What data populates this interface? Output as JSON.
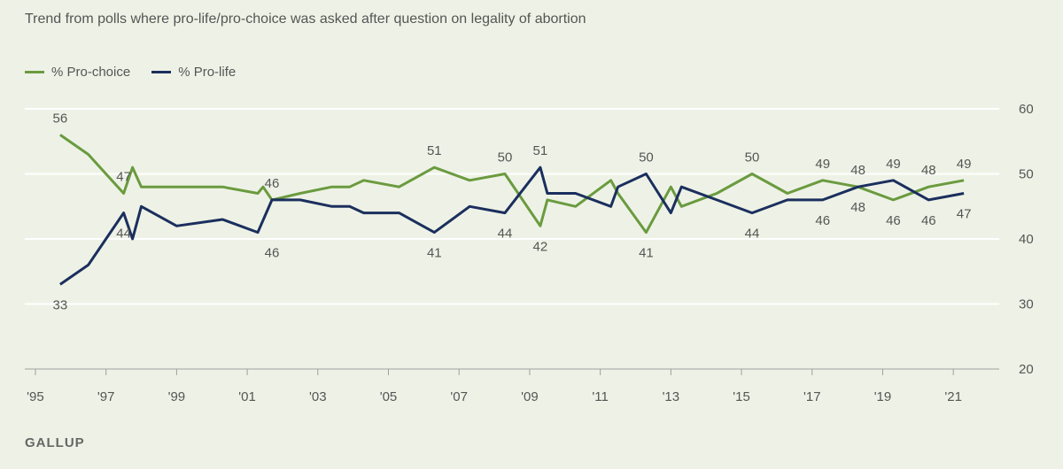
{
  "subtitle": "Trend from polls where pro-life/pro-choice was asked after question on legality of abortion",
  "source": "GALLUP",
  "chart_data": {
    "type": "line",
    "xlabel": "",
    "ylabel": "",
    "xlim": [
      1994.7,
      2022.3
    ],
    "ylim": [
      20,
      60
    ],
    "y_ticks": [
      20,
      30,
      40,
      50,
      60
    ],
    "x_ticks": [
      {
        "value": 1995,
        "label": "'95"
      },
      {
        "value": 1997,
        "label": "'97"
      },
      {
        "value": 1999,
        "label": "'99"
      },
      {
        "value": 2001,
        "label": "'01"
      },
      {
        "value": 2003,
        "label": "'03"
      },
      {
        "value": 2005,
        "label": "'05"
      },
      {
        "value": 2007,
        "label": "'07"
      },
      {
        "value": 2009,
        "label": "'09"
      },
      {
        "value": 2011,
        "label": "'11"
      },
      {
        "value": 2013,
        "label": "'13"
      },
      {
        "value": 2015,
        "label": "'15"
      },
      {
        "value": 2017,
        "label": "'17"
      },
      {
        "value": 2019,
        "label": "'19"
      },
      {
        "value": 2021,
        "label": "'21"
      }
    ],
    "grid": true,
    "legend_position": "top-left",
    "series": [
      {
        "name": "% Pro-choice",
        "color": "#6a9b3f",
        "points": [
          [
            1995.7,
            56
          ],
          [
            1996.5,
            53
          ],
          [
            1997.5,
            47
          ],
          [
            1997.75,
            51
          ],
          [
            1998.0,
            48
          ],
          [
            1999.0,
            48
          ],
          [
            2000.3,
            48
          ],
          [
            2001.3,
            47
          ],
          [
            2001.45,
            48
          ],
          [
            2001.7,
            46
          ],
          [
            2002.5,
            47
          ],
          [
            2003.4,
            48
          ],
          [
            2003.9,
            48
          ],
          [
            2004.3,
            49
          ],
          [
            2005.3,
            48
          ],
          [
            2006.3,
            51
          ],
          [
            2007.3,
            49
          ],
          [
            2008.3,
            50
          ],
          [
            2009.3,
            42
          ],
          [
            2009.5,
            46
          ],
          [
            2010.3,
            45
          ],
          [
            2011.3,
            49
          ],
          [
            2011.5,
            47
          ],
          [
            2012.3,
            41
          ],
          [
            2013.0,
            48
          ],
          [
            2013.3,
            45
          ],
          [
            2014.3,
            47
          ],
          [
            2015.3,
            50
          ],
          [
            2016.3,
            47
          ],
          [
            2017.3,
            49
          ],
          [
            2018.3,
            48
          ],
          [
            2019.3,
            46
          ],
          [
            2020.3,
            48
          ],
          [
            2021.3,
            49
          ]
        ],
        "labels": [
          {
            "x": 1995.7,
            "value": "56",
            "pos": "above"
          },
          {
            "x": 1997.5,
            "value": "47",
            "pos": "above"
          },
          {
            "x": 2001.7,
            "value": "46",
            "pos": "above"
          },
          {
            "x": 2006.3,
            "value": "51",
            "pos": "above"
          },
          {
            "x": 2008.3,
            "value": "50",
            "pos": "above"
          },
          {
            "x": 2009.3,
            "value": "42",
            "pos": "below"
          },
          {
            "x": 2012.3,
            "value": "41",
            "pos": "below"
          },
          {
            "x": 2015.3,
            "value": "50",
            "pos": "above"
          },
          {
            "x": 2017.3,
            "value": "49",
            "pos": "above"
          },
          {
            "x": 2018.3,
            "value": "48",
            "pos": "above"
          },
          {
            "x": 2019.3,
            "value": "46",
            "pos": "below"
          },
          {
            "x": 2020.3,
            "value": "48",
            "pos": "above"
          },
          {
            "x": 2021.3,
            "value": "49",
            "pos": "above"
          }
        ]
      },
      {
        "name": "% Pro-life",
        "color": "#1b2f5e",
        "points": [
          [
            1995.7,
            33
          ],
          [
            1996.5,
            36
          ],
          [
            1997.5,
            44
          ],
          [
            1997.75,
            40
          ],
          [
            1998.0,
            45
          ],
          [
            1999.0,
            42
          ],
          [
            2000.3,
            43
          ],
          [
            2001.3,
            41
          ],
          [
            2001.7,
            46
          ],
          [
            2002.5,
            46
          ],
          [
            2003.4,
            45
          ],
          [
            2003.9,
            45
          ],
          [
            2004.3,
            44
          ],
          [
            2005.3,
            44
          ],
          [
            2006.3,
            41
          ],
          [
            2007.3,
            45
          ],
          [
            2008.3,
            44
          ],
          [
            2009.3,
            51
          ],
          [
            2009.5,
            47
          ],
          [
            2010.3,
            47
          ],
          [
            2011.3,
            45
          ],
          [
            2011.5,
            48
          ],
          [
            2012.3,
            50
          ],
          [
            2013.0,
            44
          ],
          [
            2013.3,
            48
          ],
          [
            2014.3,
            46
          ],
          [
            2015.3,
            44
          ],
          [
            2016.3,
            46
          ],
          [
            2017.3,
            46
          ],
          [
            2018.3,
            48
          ],
          [
            2019.3,
            49
          ],
          [
            2020.3,
            46
          ],
          [
            2021.3,
            47
          ]
        ],
        "labels": [
          {
            "x": 1995.7,
            "value": "33",
            "pos": "below"
          },
          {
            "x": 1997.5,
            "value": "44",
            "pos": "below"
          },
          {
            "x": 2001.3,
            "value": "46",
            "pos": "below",
            "x_label": 2001.7
          },
          {
            "x": 2006.3,
            "value": "41",
            "pos": "below"
          },
          {
            "x": 2008.3,
            "value": "44",
            "pos": "below"
          },
          {
            "x": 2009.3,
            "value": "51",
            "pos": "above"
          },
          {
            "x": 2012.3,
            "value": "50",
            "pos": "above"
          },
          {
            "x": 2015.3,
            "value": "44",
            "pos": "below"
          },
          {
            "x": 2017.3,
            "value": "46",
            "pos": "below"
          },
          {
            "x": 2018.3,
            "value": "48",
            "pos": "below"
          },
          {
            "x": 2019.3,
            "value": "49",
            "pos": "above"
          },
          {
            "x": 2020.3,
            "value": "46",
            "pos": "below"
          },
          {
            "x": 2021.3,
            "value": "47",
            "pos": "below"
          }
        ]
      }
    ]
  }
}
